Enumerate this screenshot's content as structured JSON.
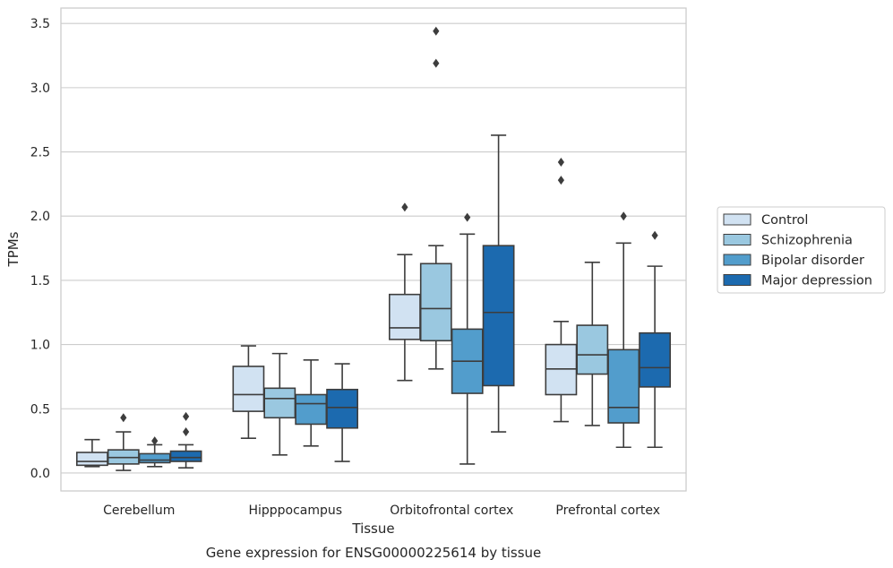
{
  "chart_data": {
    "type": "box",
    "xlabel": "Tissue",
    "ylabel": "TPMs",
    "caption": "Gene expression for ENSG00000225614 by tissue",
    "ylim": [
      -0.14,
      3.62
    ],
    "yticks": [
      "0.0",
      "0.5",
      "1.0",
      "1.5",
      "2.0",
      "2.5",
      "3.0",
      "3.5"
    ],
    "grid": true,
    "legend_position": "right",
    "categories": [
      "Cerebellum",
      "Hipppocampus",
      "Orbitofrontal cortex",
      "Prefrontal cortex"
    ],
    "series": [
      {
        "name": "Control",
        "color": "#d1e2f2",
        "boxes": [
          {
            "whislo": 0.05,
            "q1": 0.06,
            "med": 0.09,
            "q3": 0.16,
            "whishi": 0.26,
            "fliers": []
          },
          {
            "whislo": 0.27,
            "q1": 0.48,
            "med": 0.61,
            "q3": 0.83,
            "whishi": 0.99,
            "fliers": []
          },
          {
            "whislo": 0.72,
            "q1": 1.04,
            "med": 1.13,
            "q3": 1.39,
            "whishi": 1.7,
            "fliers": [
              2.07
            ]
          },
          {
            "whislo": 0.4,
            "q1": 0.61,
            "med": 0.81,
            "q3": 1.0,
            "whishi": 1.18,
            "fliers": [
              2.28,
              2.42
            ]
          }
        ]
      },
      {
        "name": "Schizophrenia",
        "color": "#9ac8e0",
        "boxes": [
          {
            "whislo": 0.02,
            "q1": 0.07,
            "med": 0.12,
            "q3": 0.18,
            "whishi": 0.32,
            "fliers": [
              0.43
            ]
          },
          {
            "whislo": 0.14,
            "q1": 0.43,
            "med": 0.58,
            "q3": 0.66,
            "whishi": 0.93,
            "fliers": []
          },
          {
            "whislo": 0.81,
            "q1": 1.03,
            "med": 1.28,
            "q3": 1.63,
            "whishi": 1.77,
            "fliers": [
              3.19,
              3.44
            ]
          },
          {
            "whislo": 0.37,
            "q1": 0.77,
            "med": 0.92,
            "q3": 1.15,
            "whishi": 1.64,
            "fliers": []
          }
        ]
      },
      {
        "name": "Bipolar disorder",
        "color": "#529dcc",
        "boxes": [
          {
            "whislo": 0.05,
            "q1": 0.08,
            "med": 0.1,
            "q3": 0.15,
            "whishi": 0.22,
            "fliers": [
              0.25
            ]
          },
          {
            "whislo": 0.21,
            "q1": 0.38,
            "med": 0.54,
            "q3": 0.61,
            "whishi": 0.88,
            "fliers": []
          },
          {
            "whislo": 0.07,
            "q1": 0.62,
            "med": 0.87,
            "q3": 1.12,
            "whishi": 1.86,
            "fliers": [
              1.99
            ]
          },
          {
            "whislo": 0.2,
            "q1": 0.39,
            "med": 0.51,
            "q3": 0.96,
            "whishi": 1.79,
            "fliers": [
              2.0
            ]
          }
        ]
      },
      {
        "name": "Major depression",
        "color": "#1c6aaf",
        "boxes": [
          {
            "whislo": 0.04,
            "q1": 0.09,
            "med": 0.12,
            "q3": 0.17,
            "whishi": 0.22,
            "fliers": [
              0.32,
              0.44
            ]
          },
          {
            "whislo": 0.09,
            "q1": 0.35,
            "med": 0.51,
            "q3": 0.65,
            "whishi": 0.85,
            "fliers": []
          },
          {
            "whislo": 0.32,
            "q1": 0.68,
            "med": 1.25,
            "q3": 1.77,
            "whishi": 2.63,
            "fliers": []
          },
          {
            "whislo": 0.2,
            "q1": 0.67,
            "med": 0.82,
            "q3": 1.09,
            "whishi": 1.61,
            "fliers": [
              1.85
            ]
          }
        ]
      }
    ]
  }
}
